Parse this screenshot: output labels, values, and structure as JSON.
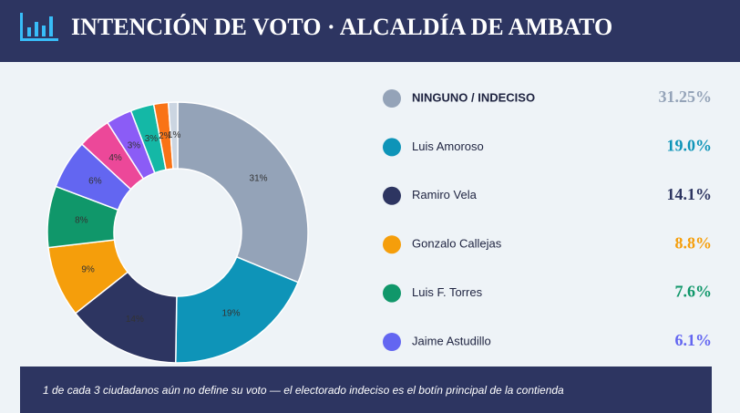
{
  "title": "INTENCIÓN DE VOTO · ALCALDÍA DE AMBATO",
  "note": "1 de cada 3 ciudadanos aún no define su voto — el electorado indeciso es el botín principal de la contienda",
  "chart_data": {
    "type": "donut",
    "categories": [
      "NINGUNO / INDECISO",
      "Luis Amoroso",
      "Ramiro Vela",
      "Gonzalo Callejas",
      "Luis F. Torres",
      "Jaime Astudillo",
      null,
      null,
      null,
      null,
      null
    ],
    "values": [
      31.25,
      19.0,
      14.1,
      8.8,
      7.6,
      6.1,
      4.1,
      3.2,
      2.9,
      1.8,
      1.15
    ],
    "value_labels": [
      "31%",
      "19%",
      "14%",
      "9%",
      "8%",
      "6%",
      "4%",
      "3%",
      "3%",
      "2%",
      "1%"
    ],
    "legend_value_labels": [
      "31.25%",
      "19.0%",
      "14.1%",
      "8.8%",
      "7.6%",
      "6.1%"
    ],
    "colors": [
      "#94a3b8",
      "#0e94b8",
      "#2d3561",
      "#f59e0b",
      "#10976a",
      "#6366f1",
      "#ec4899",
      "#8b5cf6",
      "#14b8a6",
      "#f97316",
      "#cbd5e1"
    ]
  }
}
